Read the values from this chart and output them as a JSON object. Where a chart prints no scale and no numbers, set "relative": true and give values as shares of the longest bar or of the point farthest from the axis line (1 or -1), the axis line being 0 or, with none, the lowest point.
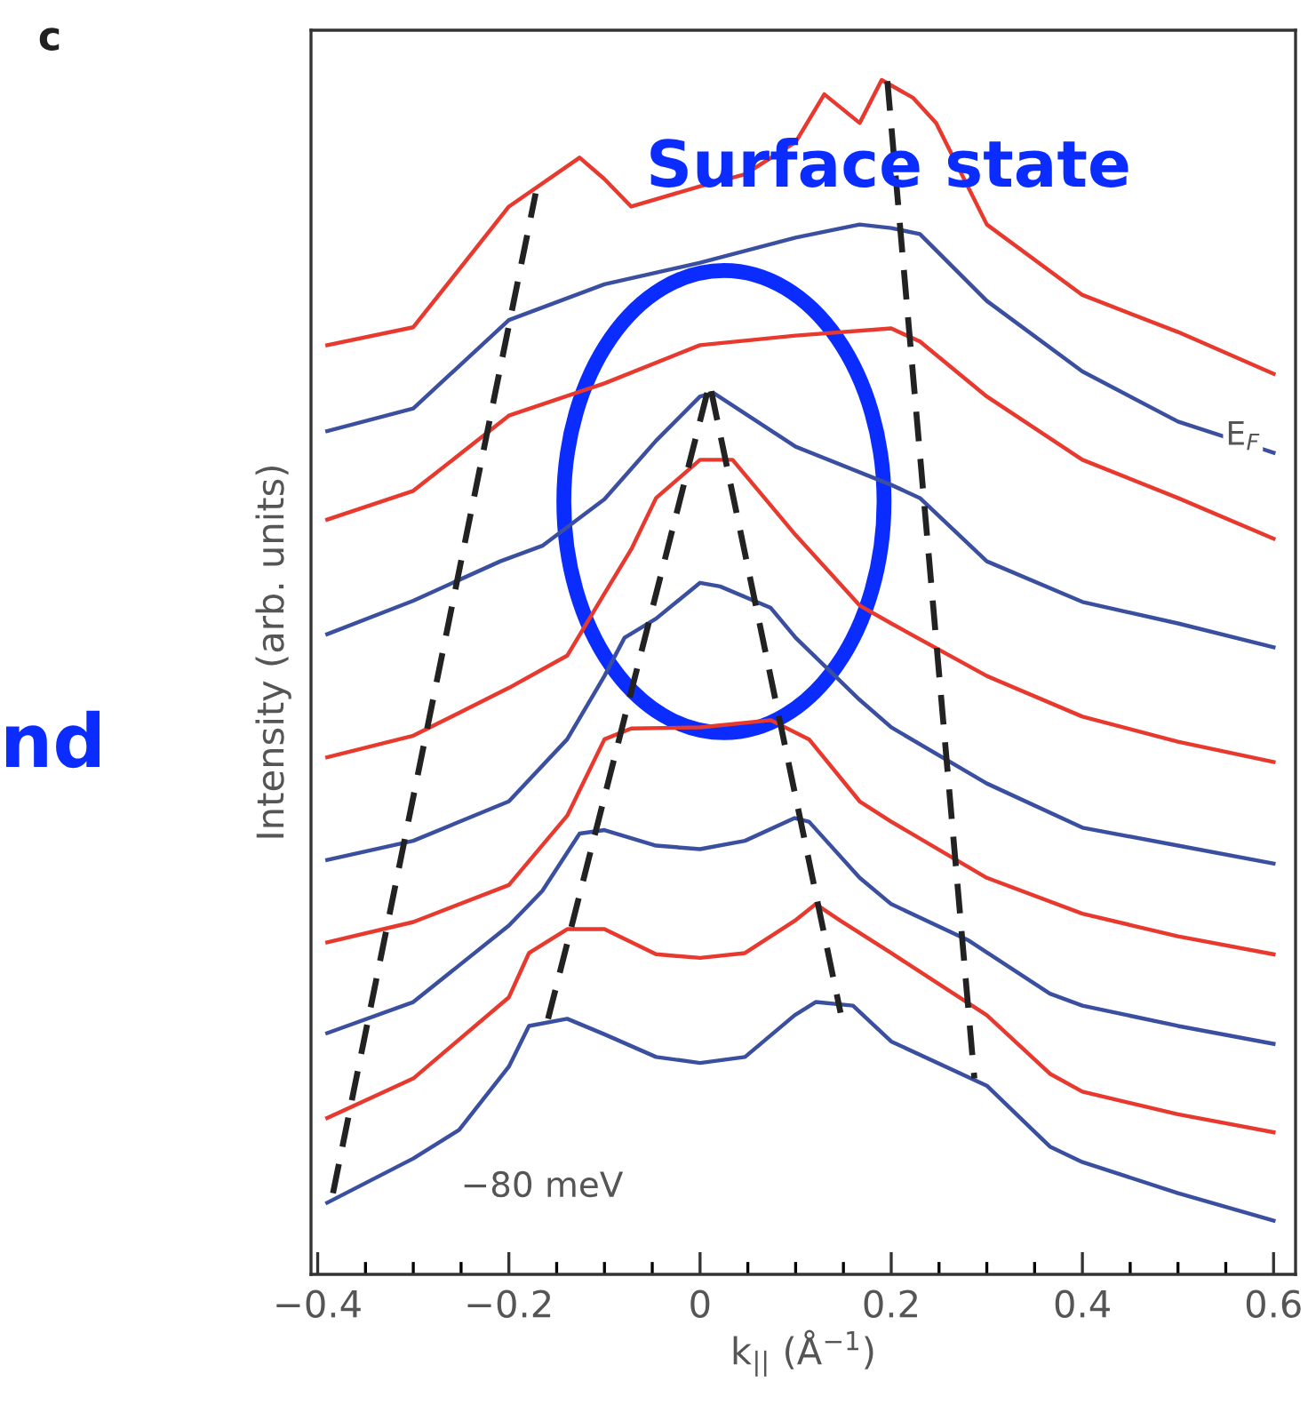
{
  "chart_data": {
    "type": "line",
    "relative": true,
    "title": "c",
    "xlabel": "k$_{||}$ (Å$^{−1}$)",
    "ylabel": "Intensity (arb. units)",
    "xlim": [
      -0.407,
      0.623
    ],
    "xticks": [
      {
        "value": -0.4,
        "label": "−0.4"
      },
      {
        "value": -0.35,
        "label": null
      },
      {
        "value": -0.3,
        "label": null
      },
      {
        "value": -0.25,
        "label": null
      },
      {
        "value": -0.2,
        "label": "−0.2"
      },
      {
        "value": -0.15,
        "label": null
      },
      {
        "value": -0.1,
        "label": null
      },
      {
        "value": -0.05,
        "label": null
      },
      0,
      {
        "value": 0.05,
        "label": null
      },
      {
        "value": 0.1,
        "label": null
      },
      {
        "value": 0.15,
        "label": null
      },
      0.2,
      {
        "value": 0.25,
        "label": null
      },
      {
        "value": 0.3,
        "label": null
      },
      {
        "value": 0.35,
        "label": null
      },
      0.4,
      {
        "value": 0.45,
        "label": null
      },
      {
        "value": 0.5,
        "label": null
      },
      {
        "value": 0.55,
        "label": null
      },
      0.6
    ],
    "tick_labels": "x",
    "grid": false,
    "marker": "none",
    "series": [
      {
        "color": "#e8392f",
        "x": [
          -0.39,
          -0.3,
          -0.2,
          -0.126,
          -0.1,
          -0.072,
          0,
          0.047,
          0.1,
          0.13,
          0.167,
          0.19,
          0.223,
          0.247,
          0.3,
          0.4,
          0.5,
          0.6
        ],
        "values": [
          0.778,
          0.793,
          0.894,
          0.935,
          0.917,
          0.894,
          0.911,
          0.921,
          0.948,
          0.988,
          0.964,
          1.0,
          0.985,
          0.964,
          0.879,
          0.82,
          0.789,
          0.754
        ]
      },
      {
        "color": "#3a4fa0",
        "x": [
          -0.39,
          -0.3,
          -0.2,
          -0.1,
          0,
          0.1,
          0.167,
          0.2,
          0.23,
          0.3,
          0.4,
          0.5,
          0.6
        ],
        "values": [
          0.706,
          0.725,
          0.799,
          0.829,
          0.847,
          0.868,
          0.879,
          0.876,
          0.871,
          0.815,
          0.756,
          0.714,
          0.688
        ]
      },
      {
        "color": "#e8392f",
        "x": [
          -0.39,
          -0.3,
          -0.2,
          -0.1,
          0,
          0.1,
          0.2,
          0.23,
          0.3,
          0.4,
          0.5,
          0.6
        ],
        "values": [
          0.632,
          0.656,
          0.719,
          0.746,
          0.778,
          0.786,
          0.792,
          0.781,
          0.735,
          0.682,
          0.65,
          0.616
        ]
      },
      {
        "color": "#3a4fa0",
        "x": [
          -0.39,
          -0.3,
          -0.209,
          -0.165,
          -0.1,
          -0.046,
          0,
          0.014,
          0.1,
          0.2,
          0.23,
          0.3,
          0.4,
          0.5,
          0.6
        ],
        "values": [
          0.536,
          0.564,
          0.597,
          0.61,
          0.649,
          0.698,
          0.735,
          0.738,
          0.693,
          0.661,
          0.65,
          0.597,
          0.563,
          0.545,
          0.525
        ]
      },
      {
        "color": "#e8392f",
        "x": [
          -0.39,
          -0.3,
          -0.2,
          -0.139,
          -0.1,
          -0.072,
          -0.046,
          0,
          0.034,
          0.1,
          0.167,
          0.2,
          0.3,
          0.4,
          0.5,
          0.6
        ],
        "values": [
          0.433,
          0.451,
          0.491,
          0.518,
          0.57,
          0.607,
          0.65,
          0.682,
          0.682,
          0.619,
          0.56,
          0.545,
          0.501,
          0.467,
          0.446,
          0.429
        ]
      },
      {
        "color": "#3a4fa0",
        "x": [
          -0.39,
          -0.3,
          -0.2,
          -0.139,
          -0.1,
          -0.079,
          -0.046,
          0,
          0.021,
          0.074,
          0.1,
          0.167,
          0.2,
          0.3,
          0.4,
          0.5,
          0.6
        ],
        "values": [
          0.347,
          0.363,
          0.396,
          0.448,
          0.501,
          0.533,
          0.549,
          0.579,
          0.576,
          0.558,
          0.533,
          0.481,
          0.458,
          0.411,
          0.374,
          0.359,
          0.344
        ]
      },
      {
        "color": "#e8392f",
        "x": [
          -0.39,
          -0.3,
          -0.2,
          -0.139,
          -0.1,
          -0.072,
          0,
          0.074,
          0.114,
          0.167,
          0.2,
          0.3,
          0.4,
          0.5,
          0.6
        ],
        "values": [
          0.278,
          0.295,
          0.326,
          0.384,
          0.448,
          0.457,
          0.458,
          0.464,
          0.448,
          0.396,
          0.379,
          0.332,
          0.302,
          0.283,
          0.268
        ]
      },
      {
        "color": "#3a4fa0",
        "x": [
          -0.39,
          -0.3,
          -0.2,
          -0.165,
          -0.126,
          -0.1,
          -0.046,
          0,
          0.047,
          0.099,
          0.114,
          0.167,
          0.2,
          0.28,
          0.366,
          0.4,
          0.5,
          0.6
        ],
        "values": [
          0.202,
          0.228,
          0.292,
          0.321,
          0.369,
          0.372,
          0.359,
          0.356,
          0.363,
          0.382,
          0.379,
          0.332,
          0.31,
          0.28,
          0.235,
          0.225,
          0.208,
          0.193
        ]
      },
      {
        "color": "#e8392f",
        "x": [
          -0.39,
          -0.3,
          -0.2,
          -0.179,
          -0.139,
          -0.1,
          -0.046,
          0,
          0.047,
          0.099,
          0.121,
          0.147,
          0.2,
          0.3,
          0.366,
          0.4,
          0.5,
          0.6
        ],
        "values": [
          0.131,
          0.164,
          0.232,
          0.269,
          0.289,
          0.289,
          0.268,
          0.265,
          0.269,
          0.296,
          0.31,
          0.296,
          0.269,
          0.217,
          0.168,
          0.153,
          0.134,
          0.119
        ]
      },
      {
        "color": "#3a4fa0",
        "x": [
          -0.39,
          -0.3,
          -0.252,
          -0.2,
          -0.179,
          -0.139,
          -0.1,
          -0.046,
          0,
          0.047,
          0.099,
          0.121,
          0.16,
          0.2,
          0.3,
          0.366,
          0.4,
          0.5,
          0.6
        ],
        "values": [
          0.06,
          0.097,
          0.121,
          0.174,
          0.208,
          0.214,
          0.201,
          0.182,
          0.177,
          0.182,
          0.217,
          0.228,
          0.225,
          0.195,
          0.158,
          0.107,
          0.094,
          0.068,
          0.045
        ]
      },
      {
        "color": "#222222",
        "line_style": "dashed",
        "x": [
          -0.384,
          -0.172
        ],
        "values": [
          0.068,
          0.905
        ]
      },
      {
        "color": "#222222",
        "line_style": "dashed",
        "x": [
          -0.159,
          0.01,
          0.147
        ],
        "values": [
          0.214,
          0.746,
          0.219
        ]
      },
      {
        "color": "#222222",
        "line_style": "dashed",
        "x": [
          0.196,
          0.287
        ],
        "values": [
          0.999,
          0.164
        ]
      }
    ],
    "annotations": [
      {
        "text": "E$_{F}$",
        "x": 0.568,
        "y": 0.702
      },
      "−80 meV",
      "Surface state",
      "nd"
    ]
  }
}
